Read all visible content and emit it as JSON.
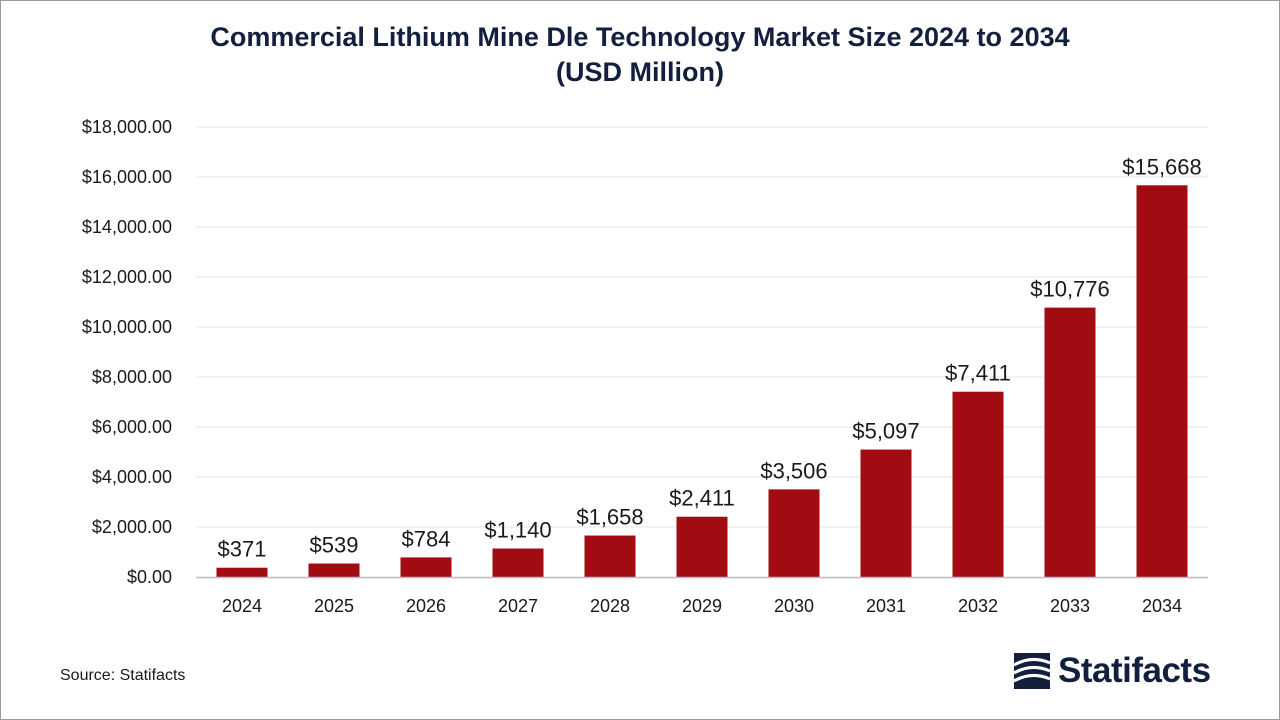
{
  "chart_data": {
    "type": "bar",
    "title_line1": "Commercial Lithium Mine Dle Technology Market Size 2024 to 2034",
    "title_line2": "(USD Million)",
    "categories": [
      "2024",
      "2025",
      "2026",
      "2027",
      "2028",
      "2029",
      "2030",
      "2031",
      "2032",
      "2033",
      "2034"
    ],
    "values": [
      371,
      539,
      784,
      1140,
      1658,
      2411,
      3506,
      5097,
      7411,
      10776,
      15668
    ],
    "data_labels": [
      "$371",
      "$539",
      "$784",
      "$1,140",
      "$1,658",
      "$2,411",
      "$3,506",
      "$5,097",
      "$7,411",
      "$10,776",
      "$15,668"
    ],
    "ylim": [
      0,
      18000
    ],
    "yticks": [
      0,
      2000,
      4000,
      6000,
      8000,
      10000,
      12000,
      14000,
      16000,
      18000
    ],
    "ytick_labels": [
      "$0.00",
      "$2,000.00",
      "$4,000.00",
      "$6,000.00",
      "$8,000.00",
      "$10,000.00",
      "$12,000.00",
      "$14,000.00",
      "$16,000.00",
      "$18,000.00"
    ],
    "grid": true,
    "bar_color": "#a10b11"
  },
  "footer": {
    "source": "Source: Statifacts",
    "brand": "Statifacts",
    "brand_icon": "statifacts-logo-icon"
  }
}
